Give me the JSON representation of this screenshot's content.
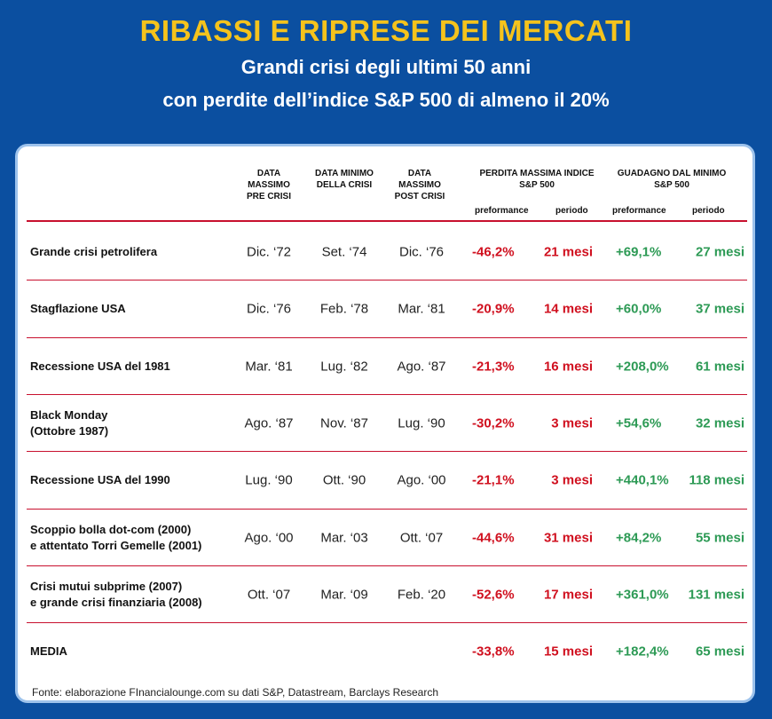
{
  "header": {
    "title": "RIBASSI E RIPRESE DEI MERCATI",
    "subtitle_line1": "Grandi crisi degli ultimi 50 anni",
    "subtitle_line2": "con perdite dell’indice S&P 500 di almeno il 20%"
  },
  "table": {
    "columns": {
      "data_massimo_pre": "DATA MASSIMO PRE CRISI",
      "data_minimo": "DATA MINIMO DELLA CRISI",
      "data_massimo_post": "DATA MASSIMO POST CRISI",
      "perdita": "PERDITA MASSIMA INDICE S&P 500",
      "guadagno": "GUADAGNO DAL MINIMO S&P 500",
      "performance": "preformance",
      "periodo": "periodo"
    },
    "rows": [
      {
        "crisis": [
          "Grande crisi petrolifera"
        ],
        "pre": "Dic. ‘72",
        "min": "Set. ‘74",
        "post": "Dic. ‘76",
        "loss": "-46,2%",
        "loss_period": "21 mesi",
        "gain": "+69,1%",
        "gain_period": "27 mesi"
      },
      {
        "crisis": [
          "Stagflazione USA"
        ],
        "pre": "Dic. ‘76",
        "min": "Feb. ‘78",
        "post": "Mar. ‘81",
        "loss": "-20,9%",
        "loss_period": "14 mesi",
        "gain": "+60,0%",
        "gain_period": "37 mesi"
      },
      {
        "crisis": [
          "Recessione USA del 1981"
        ],
        "pre": "Mar. ‘81",
        "min": "Lug. ‘82",
        "post": "Ago. ‘87",
        "loss": "-21,3%",
        "loss_period": "16 mesi",
        "gain": "+208,0%",
        "gain_period": "61 mesi"
      },
      {
        "crisis": [
          "Black Monday",
          "(Ottobre 1987)"
        ],
        "pre": "Ago. ‘87",
        "min": "Nov. ‘87",
        "post": "Lug. ‘90",
        "loss": "-30,2%",
        "loss_period": "3 mesi",
        "gain": "+54,6%",
        "gain_period": "32 mesi"
      },
      {
        "crisis": [
          "Recessione USA del 1990"
        ],
        "pre": "Lug. ‘90",
        "min": "Ott. ‘90",
        "post": "Ago. ‘00",
        "loss": "-21,1%",
        "loss_period": "3 mesi",
        "gain": "+440,1%",
        "gain_period": "118 mesi"
      },
      {
        "crisis": [
          "Scoppio bolla dot-com (2000)",
          "e attentato Torri Gemelle (2001)"
        ],
        "pre": "Ago. ‘00",
        "min": "Mar. ‘03",
        "post": "Ott. ‘07",
        "loss": "-44,6%",
        "loss_period": "31 mesi",
        "gain": "+84,2%",
        "gain_period": "55 mesi"
      },
      {
        "crisis": [
          "Crisi mutui subprime (2007)",
          "e grande crisi finanziaria (2008)"
        ],
        "pre": "Ott. ‘07",
        "min": "Mar. ‘09",
        "post": "Feb. ‘20",
        "loss": "-52,6%",
        "loss_period": "17 mesi",
        "gain": "+361,0%",
        "gain_period": "131 mesi"
      },
      {
        "crisis": [
          "MEDIA"
        ],
        "pre": "",
        "min": "",
        "post": "",
        "loss": "-33,8%",
        "loss_period": "15 mesi",
        "gain": "+182,4%",
        "gain_period": "65 mesi"
      }
    ]
  },
  "source": "Fonte: elaborazione FInancialounge.com su dati S&P, Datastream, Barclays Research",
  "colors": {
    "background": "#0b4fa0",
    "title": "#f5c31c",
    "loss": "#d0101f",
    "gain": "#2d9a55",
    "rule": "#c8102e"
  }
}
